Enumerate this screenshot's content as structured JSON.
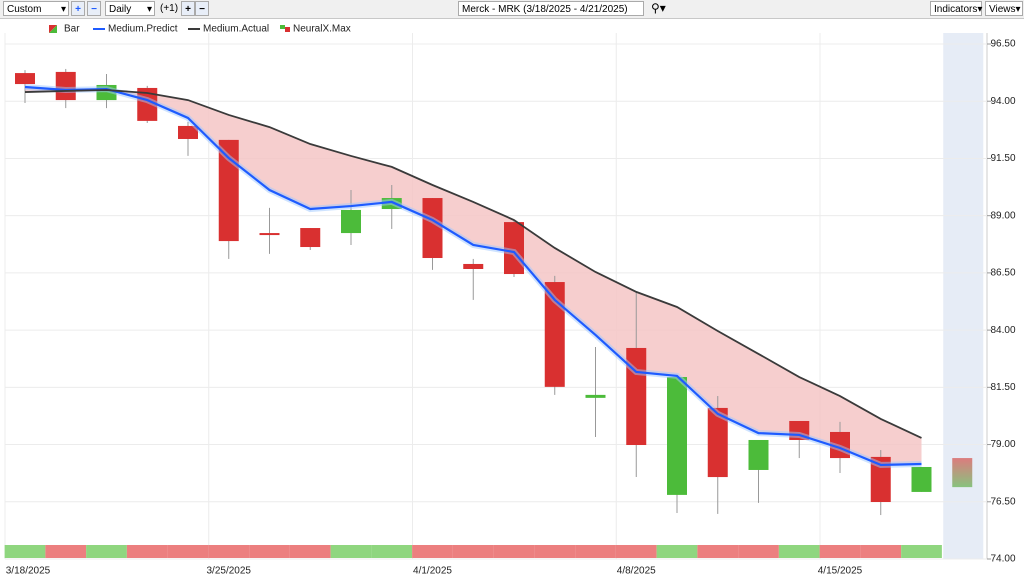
{
  "toolbar": {
    "range": "Custom",
    "interval": "Daily",
    "offset": "(+1)",
    "symbol": "Merck - MRK (3/18/2025 - 4/21/2025)",
    "indicators": "Indicators",
    "views": "Views"
  },
  "chart_data": {
    "type": "candlestick",
    "categories": [
      "3/18/2025",
      null,
      null,
      null,
      null,
      "3/25/2025",
      null,
      null,
      null,
      null,
      "4/1/2025",
      null,
      null,
      null,
      null,
      "4/8/2025",
      null,
      null,
      null,
      null,
      "4/15/2025",
      null,
      null
    ],
    "ylim": [
      74,
      96.5
    ],
    "yticks": [
      {
        "value": 96.5,
        "label": "96.50"
      },
      {
        "value": 94,
        "label": "94.00"
      },
      {
        "value": 91.5,
        "label": "91.50"
      },
      {
        "value": 89,
        "label": "89.00"
      },
      {
        "value": 86.5,
        "label": "86.50"
      },
      {
        "value": 84,
        "label": "84.00"
      },
      {
        "value": 81.5,
        "label": "81.50"
      },
      {
        "value": 79,
        "label": "79.00"
      },
      {
        "value": 76.5,
        "label": "76.50"
      },
      {
        "value": 74,
        "label": "74.00"
      }
    ],
    "grid": true,
    "series": [
      {
        "name": "Bar",
        "up_color": "#4cbb3a",
        "down_color": "#d93030",
        "open": [
          95.23,
          95.28,
          94.05,
          94.58,
          92.92,
          92.31,
          88.24,
          88.46,
          88.24,
          89.29,
          89.77,
          86.89,
          88.72,
          86.1,
          81.04,
          83.22,
          76.8,
          80.6,
          77.89,
          80.03,
          79.55,
          78.46,
          76.93
        ],
        "high": [
          95.36,
          95.41,
          95.19,
          94.67,
          93.09,
          92.31,
          89.34,
          88.46,
          90.12,
          90.34,
          89.77,
          87.11,
          88.81,
          86.37,
          83.26,
          85.67,
          81.95,
          81.12,
          79.2,
          80.03,
          79.99,
          78.76,
          78.02
        ],
        "low": [
          93.92,
          93.7,
          93.7,
          93.05,
          91.61,
          87.11,
          87.33,
          87.5,
          87.72,
          88.42,
          86.63,
          85.32,
          86.32,
          81.17,
          79.33,
          77.58,
          76.01,
          75.97,
          76.45,
          78.41,
          77.76,
          75.92,
          76.93
        ],
        "close": [
          94.75,
          94.05,
          94.71,
          93.14,
          92.35,
          87.89,
          88.16,
          87.63,
          89.25,
          89.77,
          87.15,
          86.67,
          86.45,
          81.52,
          81.17,
          78.98,
          81.95,
          77.58,
          79.2,
          79.2,
          78.41,
          76.49,
          78.02
        ]
      },
      {
        "name": "Medium.Predict",
        "color": "#1e5bff",
        "values": [
          94.62,
          94.49,
          94.53,
          94.05,
          93.27,
          91.52,
          90.12,
          89.29,
          89.42,
          89.6,
          88.81,
          87.72,
          87.41,
          85.32,
          83.79,
          82.17,
          82.0,
          80.34,
          79.5,
          79.42,
          78.85,
          78.11,
          78.15
        ]
      },
      {
        "name": "Medium.Actual",
        "color": "#3a3a3a",
        "values": [
          94.4,
          94.45,
          94.49,
          94.36,
          94.05,
          93.4,
          92.87,
          92.13,
          91.61,
          91.13,
          90.34,
          89.6,
          88.81,
          87.59,
          86.54,
          85.67,
          85.01,
          83.96,
          82.96,
          81.95,
          81.12,
          80.12,
          79.29
        ]
      },
      {
        "name": "NeuralX.Max",
        "up_color": "#8fd67f",
        "down_color": "#ec7f7f",
        "values": [
          1,
          -1,
          1,
          -1,
          -1,
          -1,
          -1,
          -1,
          1,
          1,
          -1,
          -1,
          -1,
          -1,
          -1,
          -1,
          1,
          -1,
          -1,
          1,
          -1,
          -1,
          1
        ]
      }
    ],
    "forecast": {
      "high": 78.41,
      "low": 77.14
    },
    "area_color": "#f5c6c6",
    "forecast_zone_color": "#e6ecf6"
  }
}
